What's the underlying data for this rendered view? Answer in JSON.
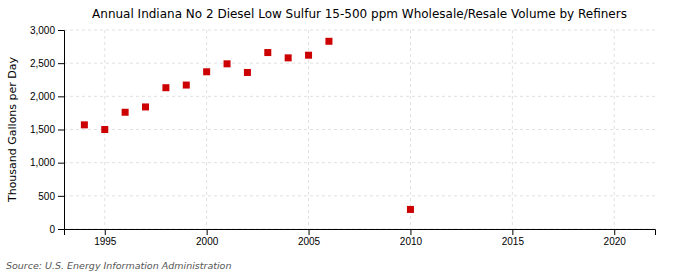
{
  "chart_data": {
    "type": "scatter",
    "title": "Annual Indiana No 2 Diesel Low Sulfur 15-500 ppm Wholesale/Resale Volume by Refiners",
    "y_label": "Thousand Gallons per Day",
    "source": "Source: U.S. Energy Information Administration",
    "x": [
      1994,
      1995,
      1996,
      1997,
      1998,
      1999,
      2000,
      2001,
      2002,
      2003,
      2004,
      2005,
      2006,
      2010
    ],
    "values": [
      1570,
      1500,
      1760,
      1840,
      2130,
      2170,
      2370,
      2490,
      2360,
      2660,
      2580,
      2620,
      2830,
      295
    ],
    "color": "#cc0000",
    "marker": "square",
    "xlim": [
      1993,
      2022
    ],
    "ylim": [
      0,
      3000
    ],
    "xticks": [
      1995,
      2000,
      2005,
      2010,
      2015,
      2020
    ],
    "yticks": [
      0,
      500,
      {
        "value": 1000,
        "label": "1,000"
      },
      {
        "value": 1500,
        "label": "1,500"
      },
      {
        "value": 2000,
        "label": "2,000"
      },
      {
        "value": 2500,
        "label": "2,500"
      },
      {
        "value": 3000,
        "label": "3,000"
      }
    ],
    "grid": true
  }
}
